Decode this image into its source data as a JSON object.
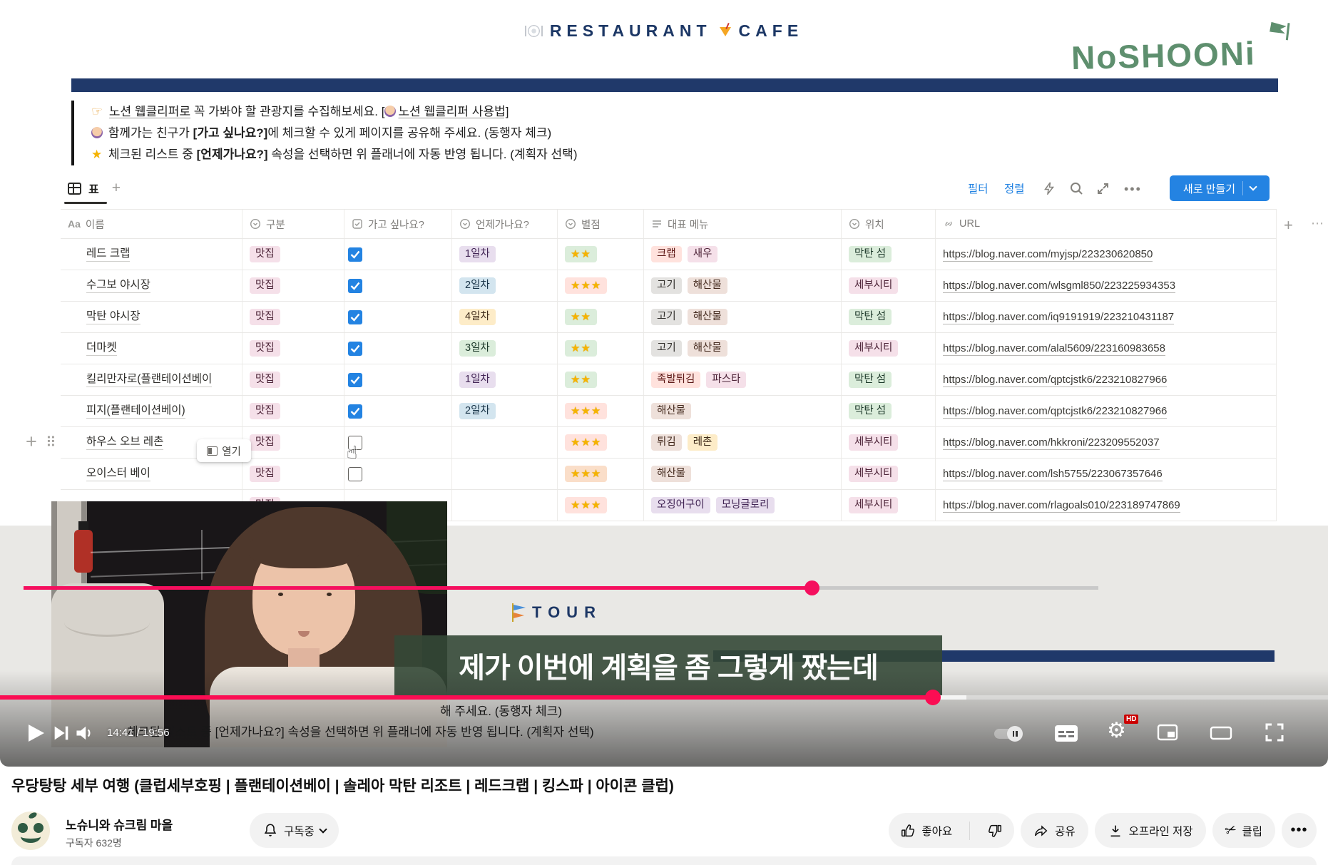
{
  "colors": {
    "accent_blue": "#2383e2",
    "navy_bar": "#20396a",
    "logo_green": "#5e8f6e",
    "youtube_progress_red": "#fb0d53",
    "subtitle_green_bg": "#344836"
  },
  "video": {
    "header": {
      "restaurant": "RESTAURANT",
      "cafe": "CAFE"
    },
    "logo_text": "NoSHOONi",
    "callout": {
      "line1_a": "노션 웹클리퍼로",
      "line1_b": " 꼭 가봐야 할 관광지를 수집해보세요. ",
      "line1_link_open": "[",
      "line1_link_text": "노션 웹클리퍼 사용법]",
      "line2_a": "함께가는 친구가 ",
      "line2_b": "[가고 싶나요?]",
      "line2_c": "에 체크할 수 있게 페이지를 공유해 주세요. (동행자 체크)",
      "line3_a": "체크된 리스트 중 ",
      "line3_b": "[언제가나요?]",
      "line3_c": " 속성을 선택하면 위 플래너에 자동 반영 됩니다. (계획자 선택)"
    },
    "view_tab": "표",
    "toolbar": {
      "filter": "필터",
      "sort": "정렬",
      "new_button": "새로 만들기"
    },
    "table": {
      "columns": [
        {
          "icon": "text-icon",
          "label": "이름"
        },
        {
          "icon": "select-icon",
          "label": "구분"
        },
        {
          "icon": "checkbox-icon",
          "label": "가고 싶나요?"
        },
        {
          "icon": "select-icon",
          "label": "언제가나요?"
        },
        {
          "icon": "select-icon",
          "label": "별점"
        },
        {
          "icon": "multiselect-icon",
          "label": "대표 메뉴"
        },
        {
          "icon": "select-icon",
          "label": "위치"
        },
        {
          "icon": "link-icon",
          "label": "URL"
        }
      ],
      "rows": [
        {
          "name": "레드 크랩",
          "category": "맛집",
          "checked": true,
          "day": "1일차",
          "day_color": "purple",
          "stars": 2,
          "stars_color": "green",
          "menu": [
            {
              "label": "크랩",
              "color": "red"
            },
            {
              "label": "새우",
              "color": "pink"
            }
          ],
          "location": "막탄 섬",
          "location_color": "green",
          "url": "https://blog.naver.com/myjsp/223230620850"
        },
        {
          "name": "수그보 야시장",
          "category": "맛집",
          "checked": true,
          "day": "2일차",
          "day_color": "blue",
          "stars": 3,
          "stars_color": "red",
          "menu": [
            {
              "label": "고기",
              "color": "gray"
            },
            {
              "label": "해산물",
              "color": "brown"
            }
          ],
          "location": "세부시티",
          "location_color": "pink",
          "url": "https://blog.naver.com/wlsgml850/223225934353"
        },
        {
          "name": "막탄 야시장",
          "category": "맛집",
          "checked": true,
          "day": "4일차",
          "day_color": "yellow",
          "stars": 2,
          "stars_color": "green",
          "menu": [
            {
              "label": "고기",
              "color": "gray"
            },
            {
              "label": "해산물",
              "color": "brown"
            }
          ],
          "location": "막탄 섬",
          "location_color": "green",
          "url": "https://blog.naver.com/iq9191919/223210431187"
        },
        {
          "name": "더마켓",
          "category": "맛집",
          "checked": true,
          "day": "3일차",
          "day_color": "green",
          "stars": 2,
          "stars_color": "green",
          "menu": [
            {
              "label": "고기",
              "color": "gray"
            },
            {
              "label": "해산물",
              "color": "brown"
            }
          ],
          "location": "세부시티",
          "location_color": "pink",
          "url": "https://blog.naver.com/alal5609/223160983658"
        },
        {
          "name": "킬리만자로(플랜테이션베이",
          "category": "맛집",
          "checked": true,
          "day": "1일차",
          "day_color": "purple",
          "stars": 2,
          "stars_color": "green",
          "menu": [
            {
              "label": "족발튀김",
              "color": "red"
            },
            {
              "label": "파스타",
              "color": "pink"
            }
          ],
          "location": "막탄 섬",
          "location_color": "green",
          "url": "https://blog.naver.com/qptcjstk6/223210827966"
        },
        {
          "name": "피지(플랜테이션베이)",
          "category": "맛집",
          "checked": true,
          "day": "2일차",
          "day_color": "blue",
          "stars": 3,
          "stars_color": "red",
          "menu": [
            {
              "label": "해산물",
              "color": "brown"
            }
          ],
          "location": "막탄 섬",
          "location_color": "green",
          "url": "https://blog.naver.com/qptcjstk6/223210827966"
        },
        {
          "name": "하우스 오브 레촌",
          "category": "맛집",
          "checked": false,
          "day": "",
          "day_color": "",
          "stars": 3,
          "stars_color": "red",
          "menu": [
            {
              "label": "튀김",
              "color": "brown"
            },
            {
              "label": "레촌",
              "color": "yellow"
            }
          ],
          "location": "세부시티",
          "location_color": "pink",
          "url": "https://blog.naver.com/hkkroni/223209552037"
        },
        {
          "name": "오이스터 베이",
          "category": "맛집",
          "checked": false,
          "day": "",
          "day_color": "",
          "stars": 3,
          "stars_color": "orange",
          "menu": [
            {
              "label": "해산물",
              "color": "brown"
            }
          ],
          "location": "세부시티",
          "location_color": "pink",
          "url": "https://blog.naver.com/lsh5755/223067357646"
        },
        {
          "name": "",
          "category": "맛집",
          "checked": null,
          "day": "",
          "day_color": "",
          "stars": 3,
          "stars_color": "red",
          "menu": [
            {
              "label": "오징어구이",
              "color": "purple"
            },
            {
              "label": "모닝글로리",
              "color": "purple"
            }
          ],
          "location": "세부시티",
          "location_color": "pink",
          "url": "https://blog.naver.com/rlagoals010/223189747869"
        }
      ]
    },
    "open_button": "열기",
    "tour_title": "TOUR",
    "subtitle_text": "제가 이번에 계획을 좀 그렇게 짰는데",
    "background_text_1": "해 주세요. (동행자 체크)",
    "background_text_2": "체크된 리스트 중 [언제가나요?] 속성을 선택하면 위 플래너에 자동 반영 됩니다. (계획자 선택)"
  },
  "player": {
    "time_display": "14:41 / 19:56",
    "hd_badge": "HD"
  },
  "page": {
    "title": "우당탕탕 세부 여행 (클럽세부호핑 | 플랜테이션베이 | 솔레아 막탄 리조트 | 레드크랩 | 킹스파 | 아이콘 클럽)",
    "channel": {
      "name": "노슈니와 슈크림 마을",
      "subscribers": "구독자 632명"
    },
    "actions": {
      "subscribed": "구독중",
      "like": "좋아요",
      "share": "공유",
      "download": "오프라인 저장",
      "clip": "클립"
    }
  }
}
